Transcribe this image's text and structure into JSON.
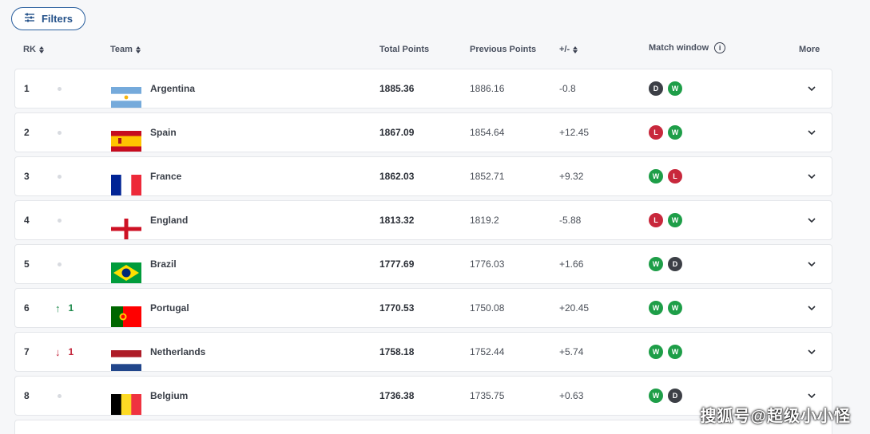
{
  "filters": {
    "label": "Filters",
    "icon": "filter-icon"
  },
  "columns": {
    "rk": "RK",
    "team": "Team",
    "total_points": "Total Points",
    "previous_points": "Previous Points",
    "diff": "+/-",
    "match_window": "Match window",
    "more": "More"
  },
  "colors": {
    "win": "#1e9e48",
    "loss": "#c8283c",
    "draw": "#3c3f46",
    "up": "#1e8a4c",
    "down": "#c3253a",
    "accent": "#2a5f9e"
  },
  "rows": [
    {
      "rank": "1",
      "move": "",
      "move_dir": "none",
      "team": "Argentina",
      "flag": "argentina",
      "total": "1885.36",
      "previous": "1886.16",
      "diff": "-0.8",
      "window": [
        "D",
        "W"
      ]
    },
    {
      "rank": "2",
      "move": "",
      "move_dir": "none",
      "team": "Spain",
      "flag": "spain",
      "total": "1867.09",
      "previous": "1854.64",
      "diff": "+12.45",
      "window": [
        "L",
        "W"
      ]
    },
    {
      "rank": "3",
      "move": "",
      "move_dir": "none",
      "team": "France",
      "flag": "france",
      "total": "1862.03",
      "previous": "1852.71",
      "diff": "+9.32",
      "window": [
        "W",
        "L"
      ]
    },
    {
      "rank": "4",
      "move": "",
      "move_dir": "none",
      "team": "England",
      "flag": "england",
      "total": "1813.32",
      "previous": "1819.2",
      "diff": "-5.88",
      "window": [
        "L",
        "W"
      ]
    },
    {
      "rank": "5",
      "move": "",
      "move_dir": "none",
      "team": "Brazil",
      "flag": "brazil",
      "total": "1777.69",
      "previous": "1776.03",
      "diff": "+1.66",
      "window": [
        "W",
        "D"
      ]
    },
    {
      "rank": "6",
      "move": "1",
      "move_dir": "up",
      "team": "Portugal",
      "flag": "portugal",
      "total": "1770.53",
      "previous": "1750.08",
      "diff": "+20.45",
      "window": [
        "W",
        "W"
      ]
    },
    {
      "rank": "7",
      "move": "1",
      "move_dir": "down",
      "team": "Netherlands",
      "flag": "netherlands",
      "total": "1758.18",
      "previous": "1752.44",
      "diff": "+5.74",
      "window": [
        "W",
        "W"
      ]
    },
    {
      "rank": "8",
      "move": "",
      "move_dir": "none",
      "team": "Belgium",
      "flag": "belgium",
      "total": "1736.38",
      "previous": "1735.75",
      "diff": "+0.63",
      "window": [
        "W",
        "D"
      ]
    }
  ],
  "watermark": "搜狐号@超级小小怪"
}
